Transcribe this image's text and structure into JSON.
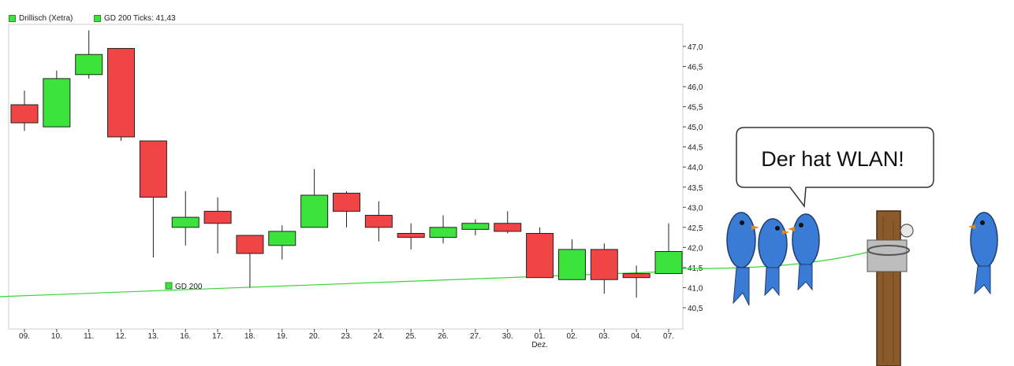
{
  "legend": {
    "main_series": "Drillisch (Xetra)",
    "ma_series": "GD 200 Ticks: 41,43",
    "ma_inline_label": "GD 200"
  },
  "cartoon": {
    "speech": "Der hat WLAN!"
  },
  "colors": {
    "up": "#3be33b",
    "down": "#f04545",
    "ma_line": "#38d638",
    "grid_border": "#cccccc"
  },
  "chart_data": {
    "type": "candlestick",
    "categories": [
      "09.",
      "10.",
      "11.",
      "12.",
      "13.",
      "16.",
      "17.",
      "18.",
      "19.",
      "20.",
      "23.",
      "24.",
      "25.",
      "26.",
      "27.",
      "30.",
      "01.",
      "02.",
      "03.",
      "04.",
      "07."
    ],
    "category_sublabels": {
      "01.": "Dez."
    },
    "series": [
      {
        "name": "Drillisch (Xetra)",
        "ohlc": [
          {
            "open": 45.55,
            "high": 45.9,
            "low": 44.9,
            "close": 45.1
          },
          {
            "open": 45.0,
            "high": 46.4,
            "low": 45.0,
            "close": 46.2
          },
          {
            "open": 46.3,
            "high": 47.4,
            "low": 46.2,
            "close": 46.8
          },
          {
            "open": 46.95,
            "high": 46.95,
            "low": 44.65,
            "close": 44.75
          },
          {
            "open": 44.65,
            "high": 44.65,
            "low": 41.75,
            "close": 43.25
          },
          {
            "open": 42.5,
            "high": 43.4,
            "low": 42.05,
            "close": 42.75
          },
          {
            "open": 42.9,
            "high": 43.25,
            "low": 41.85,
            "close": 42.6
          },
          {
            "open": 42.3,
            "high": 42.3,
            "low": 41.0,
            "close": 41.85
          },
          {
            "open": 42.05,
            "high": 42.55,
            "low": 41.7,
            "close": 42.4
          },
          {
            "open": 42.5,
            "high": 43.95,
            "low": 42.5,
            "close": 43.3
          },
          {
            "open": 43.35,
            "high": 43.4,
            "low": 42.5,
            "close": 42.9
          },
          {
            "open": 42.8,
            "high": 43.15,
            "low": 42.15,
            "close": 42.5
          },
          {
            "open": 42.35,
            "high": 42.6,
            "low": 41.95,
            "close": 42.25
          },
          {
            "open": 42.25,
            "high": 42.8,
            "low": 42.1,
            "close": 42.5
          },
          {
            "open": 42.45,
            "high": 42.7,
            "low": 42.3,
            "close": 42.6
          },
          {
            "open": 42.6,
            "high": 42.9,
            "low": 42.35,
            "close": 42.4
          },
          {
            "open": 42.35,
            "high": 42.5,
            "low": 41.25,
            "close": 41.25
          },
          {
            "open": 41.2,
            "high": 42.2,
            "low": 41.2,
            "close": 41.95
          },
          {
            "open": 41.95,
            "high": 42.1,
            "low": 40.85,
            "close": 41.2
          },
          {
            "open": 41.35,
            "high": 41.55,
            "low": 40.75,
            "close": 41.25
          },
          {
            "open": 41.35,
            "high": 42.6,
            "low": 41.35,
            "close": 41.9
          }
        ]
      },
      {
        "name": "GD 200",
        "type": "line",
        "x": [
          "09.",
          "07."
        ],
        "values": [
          40.8,
          41.4
        ]
      }
    ],
    "yticks": [
      "40,5",
      "41,0",
      "41,5",
      "42,0",
      "42,5",
      "43,0",
      "43,5",
      "44,0",
      "44,5",
      "45,0",
      "45,5",
      "46,0",
      "46,5",
      "47,0"
    ],
    "ytick_values": [
      40.5,
      41.0,
      41.5,
      42.0,
      42.5,
      43.0,
      43.5,
      44.0,
      44.5,
      45.0,
      45.5,
      46.0,
      46.5,
      47.0
    ],
    "ylim": [
      40.0,
      47.5
    ],
    "y_axis_side": "right",
    "grid": false,
    "legend_position": "top-left"
  }
}
